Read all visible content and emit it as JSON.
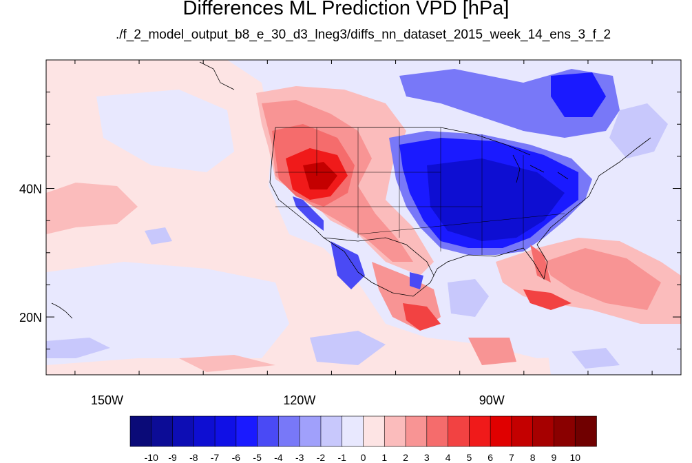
{
  "title": "Differences ML Prediction VPD [hPa]",
  "subtitle": "./f_2_model_output_b8_e_30_d3_lneg3/diffs_nn_dataset_2015_week_14_ens_3_f_2",
  "map": {
    "lat_labels": [
      {
        "text": "40N",
        "lat": 40
      },
      {
        "text": "20N",
        "lat": 20
      }
    ],
    "lon_labels": [
      {
        "text": "150W",
        "lon": -150
      },
      {
        "text": "120W",
        "lon": -120
      },
      {
        "text": "90W",
        "lon": -90
      }
    ],
    "lon_range": [
      -159.5,
      -60.5
    ],
    "lat_range": [
      11,
      60
    ]
  },
  "colorbar": {
    "labels": [
      "-10",
      "-9",
      "-8",
      "-7",
      "-6",
      "-5",
      "-4",
      "-3",
      "-2",
      "-1",
      "0",
      "1",
      "2",
      "3",
      "4",
      "5",
      "6",
      "7",
      "8",
      "9",
      "10"
    ],
    "colors": [
      "#0a0a78",
      "#0c0c96",
      "#0d0db4",
      "#0e0ed2",
      "#1010e6",
      "#1a1aff",
      "#4a4af5",
      "#7878f8",
      "#a0a0fb",
      "#c8c8fc",
      "#e8e8fe",
      "#fde4e4",
      "#fbbcbc",
      "#f89494",
      "#f56c6c",
      "#f24242",
      "#f01a1a",
      "#e00000",
      "#c40000",
      "#a60000",
      "#8a0000",
      "#700000"
    ]
  },
  "palette": {
    "neutral_pos": "#fde4e4",
    "neutral_neg": "#e8e8fe",
    "light_red": "#fbbcbc",
    "med_red": "#f56c6c",
    "strong_red": "#e00000",
    "light_blue": "#c8c8fc",
    "med_blue": "#7878f8",
    "strong_blue": "#1a1aff",
    "deep_blue": "#0e0ed2",
    "border": "#000000"
  }
}
